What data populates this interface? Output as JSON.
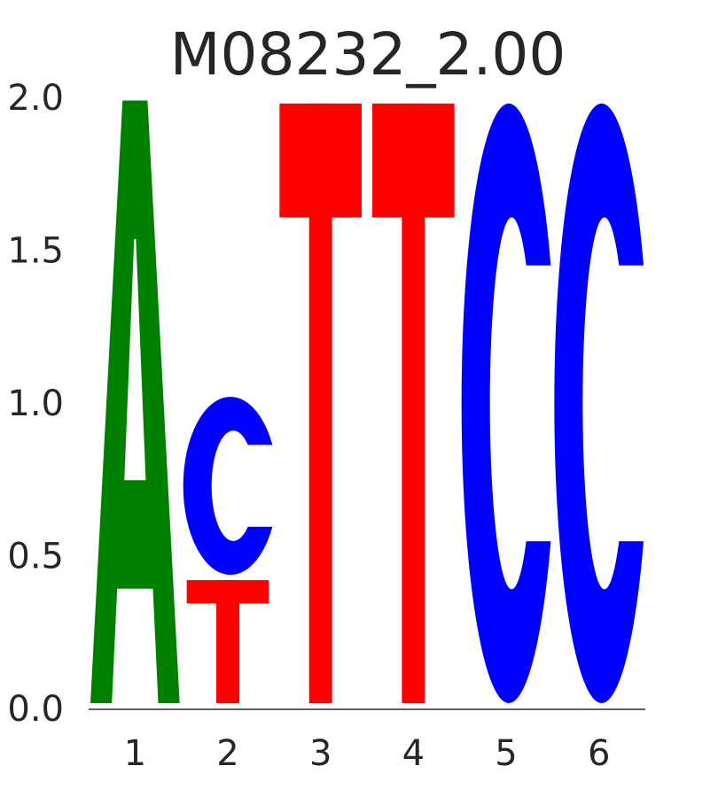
{
  "chart_data": {
    "type": "sequence-logo",
    "title": "M08232_2.00",
    "xlabel": "",
    "ylabel": "",
    "ylim": [
      0,
      2
    ],
    "yticks": [
      "0.0",
      "0.5",
      "1.0",
      "1.5",
      "2.0"
    ],
    "positions": [
      {
        "label": "1",
        "letters": [
          {
            "letter": "A",
            "height": 1.99
          }
        ]
      },
      {
        "label": "2",
        "letters": [
          {
            "letter": "T",
            "height": 0.42
          },
          {
            "letter": "C",
            "height": 0.6
          }
        ]
      },
      {
        "label": "3",
        "letters": [
          {
            "letter": "T",
            "height": 1.98
          }
        ]
      },
      {
        "label": "4",
        "letters": [
          {
            "letter": "T",
            "height": 1.98
          }
        ]
      },
      {
        "label": "5",
        "letters": [
          {
            "letter": "C",
            "height": 1.98
          }
        ]
      },
      {
        "label": "6",
        "letters": [
          {
            "letter": "C",
            "height": 1.98
          }
        ]
      }
    ],
    "letter_colors": {
      "A": "#008000",
      "C": "#0000ff",
      "G": "#ffa500",
      "T": "#ff0000"
    },
    "grid": false
  }
}
